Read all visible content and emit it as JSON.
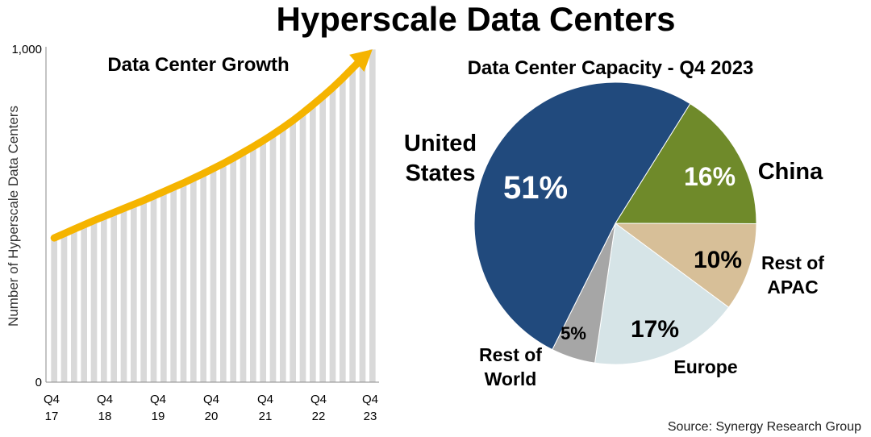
{
  "title": "Hyperscale Data Centers",
  "source": "Source: Synergy Research Group",
  "chart_data": [
    {
      "type": "bar",
      "title": "Data Center Growth",
      "ylabel": "Number of Hyperscale Data Centers",
      "xlabel": "",
      "ylim": [
        0,
        1000
      ],
      "yticks": [
        {
          "value": 0,
          "label": "0"
        },
        {
          "value": 1000,
          "label": "1,000"
        }
      ],
      "xtick_labels": [
        {
          "q": "Q4",
          "y": "17"
        },
        {
          "q": "Q4",
          "y": "18"
        },
        {
          "q": "Q4",
          "y": "19"
        },
        {
          "q": "Q4",
          "y": "20"
        },
        {
          "q": "Q4",
          "y": "21"
        },
        {
          "q": "Q4",
          "y": "22"
        },
        {
          "q": "Q4",
          "y": "23"
        }
      ],
      "bar_color": "#d9d9d9",
      "trend_color": "#f5b400",
      "values": [
        430,
        443,
        456,
        469,
        482,
        494,
        506,
        518,
        530,
        542,
        555,
        568,
        581,
        594,
        608,
        622,
        637,
        652,
        668,
        685,
        702,
        720,
        739,
        759,
        780,
        803,
        827,
        852,
        878,
        906,
        936,
        966,
        992
      ]
    },
    {
      "type": "pie",
      "title": "Data Center Capacity - Q4 2023",
      "slices": [
        {
          "label": "China",
          "value": 16,
          "pct": "16%",
          "color": "#6f8a2a",
          "pct_color": "#ffffff"
        },
        {
          "label": "Rest of APAC",
          "value": 10,
          "pct": "10%",
          "color": "#d7bf98",
          "pct_color": "#000000"
        },
        {
          "label": "Europe",
          "value": 17,
          "pct": "17%",
          "color": "#d6e4e7",
          "pct_color": "#000000"
        },
        {
          "label": "Rest of World",
          "value": 5,
          "pct": "5%",
          "color": "#a6a6a6",
          "pct_color": "#000000"
        },
        {
          "label": "United States",
          "value": 51,
          "pct": "51%",
          "color": "#214a7d",
          "pct_color": "#ffffff"
        }
      ],
      "outer_labels": {
        "china": [
          "China"
        ],
        "rest_apac": [
          "Rest of",
          "APAC"
        ],
        "europe": [
          "Europe"
        ],
        "rest_world": [
          "Rest of",
          "World"
        ],
        "united_states": [
          "United",
          "States"
        ]
      }
    }
  ]
}
